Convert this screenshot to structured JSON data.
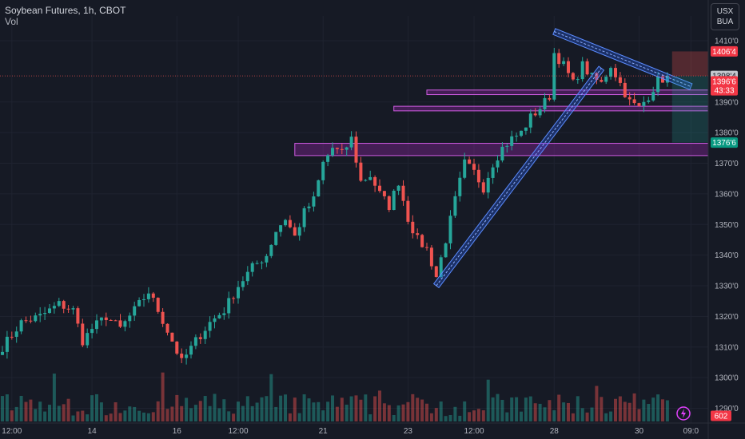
{
  "header": {
    "symbol": "Soybean Futures, 1h, CBOT",
    "volume_label": "Vol",
    "currency": [
      "USX",
      "BUA"
    ]
  },
  "colors": {
    "background": "#161a25",
    "up": "#26a69a",
    "down": "#ef5350",
    "channel": "#2962ff",
    "zone": "#9c27b0",
    "grid": "#1f2330"
  },
  "chart_data": {
    "type": "candlestick",
    "title": "Soybean Futures, 1h, CBOT",
    "ylim": [
      1285,
      1415
    ],
    "yticks": [
      {
        "label": "1410'0",
        "value": 1410
      },
      {
        "label": "1390'0",
        "value": 1390
      },
      {
        "label": "1380'0",
        "value": 1380
      },
      {
        "label": "1370'0",
        "value": 1370
      },
      {
        "label": "1360'0",
        "value": 1360
      },
      {
        "label": "1350'0",
        "value": 1350
      },
      {
        "label": "1340'0",
        "value": 1340
      },
      {
        "label": "1330'0",
        "value": 1330
      },
      {
        "label": "1320'0",
        "value": 1320
      },
      {
        "label": "1310'0",
        "value": 1310
      },
      {
        "label": "1300'0",
        "value": 1300
      },
      {
        "label": "1290'0",
        "value": 1290
      }
    ],
    "xticks": [
      {
        "label": "12:00",
        "bar": 2
      },
      {
        "label": "14",
        "bar": 19
      },
      {
        "label": "16",
        "bar": 37
      },
      {
        "label": "12:00",
        "bar": 50
      },
      {
        "label": "21",
        "bar": 68
      },
      {
        "label": "23",
        "bar": 86
      },
      {
        "label": "12:00",
        "bar": 100
      },
      {
        "label": "28",
        "bar": 117
      },
      {
        "label": "30",
        "bar": 135
      },
      {
        "label": "09:0",
        "bar": 146
      }
    ],
    "close_path": [
      [
        0,
        1310
      ],
      [
        4,
        1318
      ],
      [
        8,
        1320
      ],
      [
        12,
        1324
      ],
      [
        15,
        1322
      ],
      [
        17,
        1312
      ],
      [
        19,
        1316
      ],
      [
        22,
        1320
      ],
      [
        25,
        1316
      ],
      [
        28,
        1322
      ],
      [
        31,
        1328
      ],
      [
        33,
        1322
      ],
      [
        36,
        1312
      ],
      [
        38,
        1305
      ],
      [
        41,
        1312
      ],
      [
        44,
        1318
      ],
      [
        47,
        1322
      ],
      [
        50,
        1330
      ],
      [
        53,
        1336
      ],
      [
        56,
        1340
      ],
      [
        58,
        1348
      ],
      [
        60,
        1352
      ],
      [
        62,
        1346
      ],
      [
        64,
        1354
      ],
      [
        66,
        1358
      ],
      [
        68,
        1370
      ],
      [
        70,
        1375
      ],
      [
        72,
        1373
      ],
      [
        74,
        1378
      ],
      [
        76,
        1364
      ],
      [
        78,
        1366
      ],
      [
        80,
        1360
      ],
      [
        82,
        1356
      ],
      [
        84,
        1364
      ],
      [
        86,
        1352
      ],
      [
        88,
        1345
      ],
      [
        90,
        1342
      ],
      [
        92,
        1333
      ],
      [
        94,
        1345
      ],
      [
        96,
        1358
      ],
      [
        98,
        1370
      ],
      [
        100,
        1367
      ],
      [
        102,
        1362
      ],
      [
        104,
        1370
      ],
      [
        106,
        1375
      ],
      [
        108,
        1378
      ],
      [
        110,
        1380
      ],
      [
        112,
        1385
      ],
      [
        114,
        1388
      ],
      [
        116,
        1392
      ],
      [
        117,
        1406
      ],
      [
        119,
        1402
      ],
      [
        121,
        1396
      ],
      [
        123,
        1402
      ],
      [
        125,
        1398
      ],
      [
        127,
        1396
      ],
      [
        129,
        1402
      ],
      [
        131,
        1396
      ],
      [
        133,
        1390
      ],
      [
        135,
        1388
      ],
      [
        137,
        1392
      ],
      [
        139,
        1397
      ],
      [
        141,
        1398
      ]
    ],
    "volume_range": [
      0,
      10000
    ],
    "last_volume": "602",
    "price_tags": [
      {
        "label": "1406'4",
        "value": 1406.5,
        "style": "red"
      },
      {
        "label": "1398'4",
        "value": 1398.5,
        "style": "gray"
      },
      {
        "label": "1396'6",
        "value": 1396.75,
        "style": "red"
      },
      {
        "label": "43:33",
        "value": 1393.8,
        "style": "red"
      },
      {
        "label": "1376'6",
        "value": 1376.75,
        "style": "teal"
      }
    ],
    "zones": [
      {
        "from_bar": 62,
        "top": 1376.5,
        "bottom": 1372.5
      },
      {
        "from_bar": 83,
        "top": 1388.6,
        "bottom": 1387.1
      },
      {
        "from_bar": 90,
        "top": 1393.9,
        "bottom": 1392.4
      }
    ],
    "trendlines": [
      {
        "name": "ascending",
        "from": [
          92,
          1330
        ],
        "to": [
          127,
          1401
        ]
      },
      {
        "name": "descending",
        "from": [
          117,
          1413
        ],
        "to": [
          146,
          1395
        ]
      }
    ],
    "position_box": {
      "from_bar": 142,
      "to_bar": 146,
      "entry": 1398.5,
      "stop": 1406.5,
      "target": 1376.75
    }
  }
}
